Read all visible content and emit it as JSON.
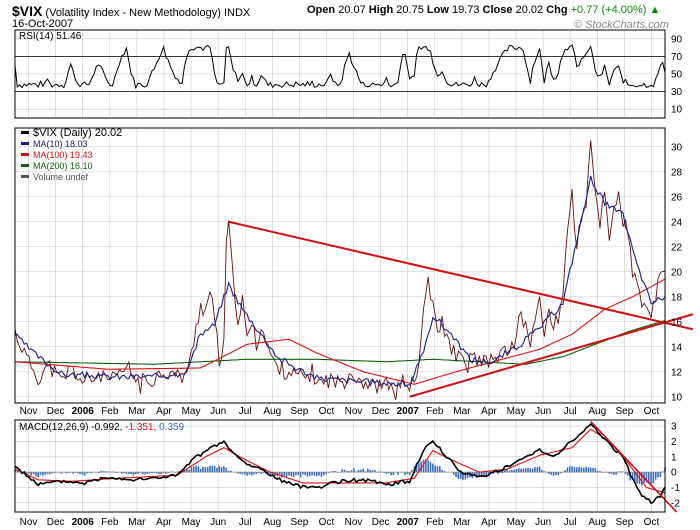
{
  "header": {
    "symbol": "$VIX",
    "name": "(Volatility Index - New Methodology)",
    "exchange": "INDX",
    "date": "16-Oct-2007",
    "open_label": "Open",
    "open": "20.07",
    "high_label": "High",
    "high": "20.75",
    "low_label": "Low",
    "low": "19.73",
    "close_label": "Close",
    "close": "20.02",
    "chg_label": "Chg",
    "chg": "+0.77 (+4.00%)",
    "chg_arrow": "▲",
    "watermark": "© StockCharts.com"
  },
  "colors": {
    "price": "#000000",
    "ma10": "#1c1c8c",
    "ma100": "#e01010",
    "ma200": "#106010",
    "trendline": "#d01010",
    "macd_hist": "#3a6ec0",
    "grid": "#c8c8c8"
  },
  "chart_data": [
    {
      "type": "line",
      "title": "RSI(14) 51.46",
      "series": [
        {
          "name": "RSI(14)",
          "last": 51.46
        }
      ],
      "y_ticks": [
        10,
        30,
        50,
        70,
        90
      ],
      "ylim": [
        0,
        100
      ],
      "ref_lines": [
        30,
        70
      ]
    },
    {
      "type": "line",
      "title": "$VIX (Daily) 20.02",
      "legend": [
        {
          "label": "$VIX (Daily) 20.02",
          "color": "#000000"
        },
        {
          "label": "MA(10) 18.03",
          "color": "#1c1c8c"
        },
        {
          "label": "MA(100) 19.43",
          "color": "#e01010"
        },
        {
          "label": "MA(200) 16.10",
          "color": "#106010"
        },
        {
          "label": "Volume undef",
          "color": "#555555"
        }
      ],
      "x_labels": [
        "Nov",
        "Dec",
        "2006",
        "Feb",
        "Mar",
        "Apr",
        "May",
        "Jun",
        "Jul",
        "Aug",
        "Sep",
        "Oct",
        "Nov",
        "Dec",
        "2007",
        "Feb",
        "Mar",
        "Apr",
        "May",
        "Jun",
        "Jul",
        "Aug",
        "Sep",
        "Oct"
      ],
      "y_ticks": [
        10,
        12,
        14,
        16,
        18,
        20,
        22,
        24,
        26,
        28,
        30
      ],
      "ylim": [
        9.5,
        31.5
      ],
      "price_keypoints": [
        [
          0,
          15.2
        ],
        [
          4,
          13.5
        ],
        [
          10,
          11.5
        ],
        [
          14,
          12.5
        ],
        [
          20,
          11.2
        ],
        [
          24,
          12.3
        ],
        [
          30,
          11.0
        ],
        [
          36,
          11.8
        ],
        [
          42,
          11.2
        ],
        [
          48,
          12.3
        ],
        [
          54,
          11.0
        ],
        [
          60,
          11.5
        ],
        [
          64,
          12.1
        ],
        [
          68,
          11.8
        ],
        [
          72,
          11.6
        ],
        [
          75,
          12.4
        ],
        [
          78,
          15.5
        ],
        [
          80,
          17.5
        ],
        [
          82,
          16.8
        ],
        [
          84,
          18.5
        ],
        [
          86,
          16.0
        ],
        [
          88,
          13.0
        ],
        [
          90,
          14.0
        ],
        [
          91,
          22.0
        ],
        [
          92,
          24.0
        ],
        [
          94,
          19.0
        ],
        [
          96,
          16.5
        ],
        [
          98,
          17.5
        ],
        [
          100,
          14.5
        ],
        [
          102,
          16.0
        ],
        [
          104,
          14.0
        ],
        [
          106,
          15.8
        ],
        [
          108,
          14.5
        ],
        [
          110,
          13.5
        ],
        [
          112,
          12.5
        ],
        [
          116,
          12.2
        ],
        [
          120,
          11.8
        ],
        [
          124,
          11.5
        ],
        [
          128,
          11.8
        ],
        [
          132,
          11.0
        ],
        [
          136,
          11.5
        ],
        [
          140,
          11.0
        ],
        [
          144,
          12.0
        ],
        [
          148,
          11.5
        ],
        [
          152,
          11.0
        ],
        [
          156,
          10.8
        ],
        [
          160,
          11.0
        ],
        [
          164,
          10.5
        ],
        [
          168,
          11.5
        ],
        [
          170,
          10.8
        ],
        [
          172,
          11.0
        ],
        [
          174,
          12.5
        ],
        [
          176,
          17.0
        ],
        [
          178,
          19.5
        ],
        [
          180,
          17.0
        ],
        [
          182,
          15.0
        ],
        [
          184,
          16.0
        ],
        [
          186,
          14.5
        ],
        [
          188,
          14.0
        ],
        [
          190,
          13.5
        ],
        [
          194,
          12.5
        ],
        [
          198,
          13.2
        ],
        [
          202,
          12.5
        ],
        [
          206,
          13.0
        ],
        [
          210,
          13.5
        ],
        [
          214,
          14.0
        ],
        [
          218,
          16.5
        ],
        [
          222,
          14.5
        ],
        [
          226,
          17.5
        ],
        [
          228,
          15.0
        ],
        [
          230,
          17.0
        ],
        [
          232,
          15.5
        ],
        [
          234,
          16.0
        ],
        [
          236,
          18.5
        ],
        [
          238,
          23.5
        ],
        [
          240,
          26.0
        ],
        [
          242,
          22.0
        ],
        [
          244,
          24.5
        ],
        [
          246,
          25.0
        ],
        [
          248,
          30.5
        ],
        [
          250,
          26.0
        ],
        [
          252,
          24.0
        ],
        [
          254,
          26.5
        ],
        [
          256,
          22.5
        ],
        [
          258,
          25.5
        ],
        [
          260,
          26.0
        ],
        [
          262,
          24.0
        ],
        [
          264,
          23.0
        ],
        [
          266,
          20.0
        ],
        [
          268,
          19.0
        ],
        [
          270,
          17.0
        ],
        [
          272,
          17.5
        ],
        [
          274,
          16.5
        ],
        [
          276,
          18.0
        ],
        [
          278,
          19.5
        ],
        [
          280,
          20.02
        ]
      ],
      "ma10_keypoints": [
        [
          0,
          15.0
        ],
        [
          8,
          13.5
        ],
        [
          20,
          11.8
        ],
        [
          40,
          11.6
        ],
        [
          60,
          11.6
        ],
        [
          74,
          12.0
        ],
        [
          80,
          15.0
        ],
        [
          86,
          15.8
        ],
        [
          92,
          19.0
        ],
        [
          98,
          17.0
        ],
        [
          106,
          15.0
        ],
        [
          114,
          13.0
        ],
        [
          130,
          11.5
        ],
        [
          150,
          11.2
        ],
        [
          170,
          11.0
        ],
        [
          176,
          13.5
        ],
        [
          180,
          16.5
        ],
        [
          188,
          15.0
        ],
        [
          196,
          13.0
        ],
        [
          206,
          12.8
        ],
        [
          216,
          14.0
        ],
        [
          226,
          15.5
        ],
        [
          236,
          17.5
        ],
        [
          242,
          22.5
        ],
        [
          248,
          27.5
        ],
        [
          254,
          25.5
        ],
        [
          262,
          24.5
        ],
        [
          268,
          20.5
        ],
        [
          274,
          17.5
        ],
        [
          280,
          18.03
        ]
      ],
      "ma100_keypoints": [
        [
          0,
          12.8
        ],
        [
          40,
          12.2
        ],
        [
          80,
          12.3
        ],
        [
          100,
          14.2
        ],
        [
          118,
          14.6
        ],
        [
          130,
          13.5
        ],
        [
          150,
          12.0
        ],
        [
          172,
          11.0
        ],
        [
          190,
          12.0
        ],
        [
          210,
          13.0
        ],
        [
          226,
          13.8
        ],
        [
          240,
          15.0
        ],
        [
          254,
          17.0
        ],
        [
          266,
          18.0
        ],
        [
          272,
          18.6
        ],
        [
          280,
          19.43
        ]
      ],
      "ma200_keypoints": [
        [
          0,
          12.8
        ],
        [
          60,
          12.6
        ],
        [
          100,
          13.0
        ],
        [
          130,
          13.0
        ],
        [
          160,
          12.8
        ],
        [
          180,
          13.0
        ],
        [
          200,
          12.8
        ],
        [
          220,
          12.6
        ],
        [
          236,
          13.2
        ],
        [
          250,
          14.2
        ],
        [
          264,
          15.2
        ],
        [
          280,
          16.1
        ]
      ],
      "trendlines": [
        {
          "from": [
            92,
            24.0
          ],
          "to": [
            292,
            15.4
          ]
        },
        {
          "from": [
            170,
            10.0
          ],
          "to": [
            292,
            16.6
          ]
        }
      ]
    },
    {
      "type": "line",
      "title": "MACD(12,26,9) -0.992, -1.351, 0.359",
      "legend": [
        {
          "label": "MACD(12,26,9)",
          "value": "-0.992",
          "color": "#000000"
        },
        {
          "label": "",
          "value": "-1.351",
          "color": "#e01010"
        },
        {
          "label": "",
          "value": "0.359",
          "color": "#3a6ec0"
        }
      ],
      "x_labels": [
        "Nov",
        "Dec",
        "2006",
        "Feb",
        "Mar",
        "Apr",
        "May",
        "Jun",
        "Jul",
        "Aug",
        "Sep",
        "Oct",
        "Nov",
        "Dec",
        "2007",
        "Feb",
        "Mar",
        "Apr",
        "May",
        "Jun",
        "Jul",
        "Aug",
        "Sep",
        "Oct"
      ],
      "y_ticks": [
        -2,
        -1,
        0,
        1,
        2,
        3
      ],
      "ylim": [
        -2.6,
        3.4
      ],
      "macd_keypoints": [
        [
          0,
          0.4
        ],
        [
          10,
          -0.8
        ],
        [
          20,
          -0.6
        ],
        [
          30,
          -0.7
        ],
        [
          40,
          -0.3
        ],
        [
          50,
          -0.5
        ],
        [
          60,
          -0.4
        ],
        [
          70,
          -0.2
        ],
        [
          78,
          1.0
        ],
        [
          84,
          1.5
        ],
        [
          90,
          2.0
        ],
        [
          94,
          1.2
        ],
        [
          100,
          0.5
        ],
        [
          106,
          0.2
        ],
        [
          114,
          -0.5
        ],
        [
          122,
          -0.9
        ],
        [
          130,
          -1.0
        ],
        [
          140,
          -0.6
        ],
        [
          150,
          -0.5
        ],
        [
          160,
          -0.8
        ],
        [
          170,
          -0.6
        ],
        [
          176,
          1.5
        ],
        [
          180,
          2.0
        ],
        [
          186,
          1.0
        ],
        [
          192,
          0.0
        ],
        [
          200,
          -0.3
        ],
        [
          210,
          0.2
        ],
        [
          218,
          0.8
        ],
        [
          226,
          1.5
        ],
        [
          232,
          1.0
        ],
        [
          238,
          1.8
        ],
        [
          244,
          2.5
        ],
        [
          248,
          3.2
        ],
        [
          252,
          2.5
        ],
        [
          258,
          1.5
        ],
        [
          262,
          1.0
        ],
        [
          266,
          -0.5
        ],
        [
          270,
          -1.5
        ],
        [
          274,
          -2.0
        ],
        [
          278,
          -1.5
        ],
        [
          280,
          -0.992
        ]
      ],
      "signal_keypoints": [
        [
          0,
          0.2
        ],
        [
          10,
          -0.5
        ],
        [
          24,
          -0.6
        ],
        [
          44,
          -0.4
        ],
        [
          70,
          -0.2
        ],
        [
          82,
          1.0
        ],
        [
          90,
          1.6
        ],
        [
          98,
          0.9
        ],
        [
          110,
          0.0
        ],
        [
          124,
          -0.7
        ],
        [
          140,
          -0.7
        ],
        [
          160,
          -0.7
        ],
        [
          172,
          -0.4
        ],
        [
          180,
          1.4
        ],
        [
          188,
          0.8
        ],
        [
          200,
          0.0
        ],
        [
          212,
          0.2
        ],
        [
          226,
          1.1
        ],
        [
          240,
          1.6
        ],
        [
          248,
          2.8
        ],
        [
          256,
          2.0
        ],
        [
          264,
          0.6
        ],
        [
          272,
          -1.0
        ],
        [
          280,
          -1.351
        ]
      ],
      "trendline": {
        "from": [
          248,
          3.3
        ],
        "to": [
          285,
          -2.6
        ]
      }
    }
  ]
}
